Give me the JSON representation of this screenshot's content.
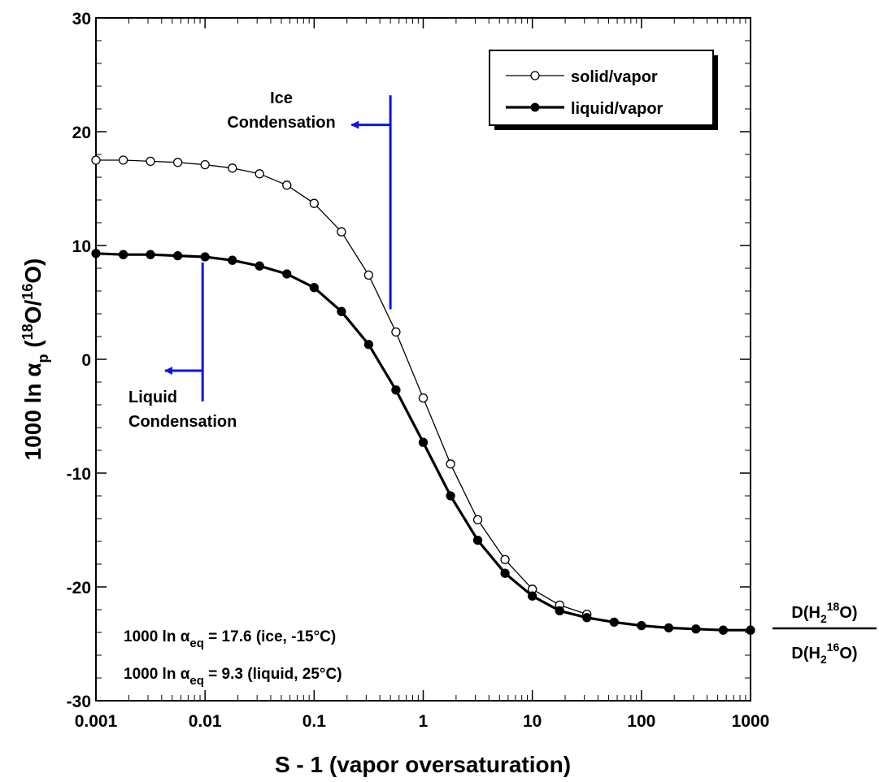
{
  "chart_data": {
    "type": "line",
    "xscale": "log",
    "xlim": [
      0.001,
      1000
    ],
    "ylim": [
      -30,
      30
    ],
    "xlabel": "S - 1 (vapor oversaturation)",
    "ylabel": {
      "prefix": "1000 ln α",
      "sub": "p",
      "mid": " (",
      "sup1": "18",
      "mid2": "O/",
      "sup2": "16",
      "suffix": "O)"
    },
    "x_ticks": [
      0.001,
      0.01,
      0.1,
      1,
      10,
      100,
      1000
    ],
    "x_tick_labels": [
      "0.001",
      "0.01",
      "0.1",
      "1",
      "10",
      "100",
      "1000"
    ],
    "y_ticks": [
      30,
      20,
      10,
      0,
      -10,
      -20,
      -30
    ],
    "y_tick_labels": [
      "30",
      "20",
      "10",
      "0",
      "-10",
      "-20",
      "-30"
    ],
    "legend": {
      "position": "top-right",
      "entries": [
        "solid/vapor",
        "liquid/vapor"
      ]
    },
    "series": [
      {
        "name": "solid/vapor",
        "marker": "open-circle",
        "x": [
          0.001,
          0.00178,
          0.00316,
          0.00562,
          0.01,
          0.0178,
          0.0316,
          0.0562,
          0.1,
          0.178,
          0.316,
          0.562,
          1,
          1.78,
          3.16,
          5.62,
          10,
          17.8,
          31.6
        ],
        "y": [
          17.5,
          17.5,
          17.4,
          17.3,
          17.1,
          16.8,
          16.3,
          15.3,
          13.7,
          11.2,
          7.4,
          2.4,
          -3.4,
          -9.2,
          -14.1,
          -17.6,
          -20.2,
          -21.6,
          -22.4
        ]
      },
      {
        "name": "liquid/vapor",
        "marker": "filled-circle",
        "x": [
          0.001,
          0.00178,
          0.00316,
          0.00562,
          0.01,
          0.0178,
          0.0316,
          0.0562,
          0.1,
          0.178,
          0.316,
          0.562,
          1,
          1.78,
          3.16,
          5.62,
          10,
          17.8,
          31.6,
          56.2,
          100,
          178,
          316,
          562,
          1000
        ],
        "y": [
          9.3,
          9.2,
          9.2,
          9.1,
          9.0,
          8.7,
          8.2,
          7.5,
          6.3,
          4.2,
          1.3,
          -2.7,
          -7.3,
          -12.0,
          -15.9,
          -18.8,
          -20.8,
          -22.1,
          -22.7,
          -23.1,
          -23.4,
          -23.6,
          -23.7,
          -23.8,
          -23.8
        ]
      }
    ],
    "annotations": {
      "ice": {
        "line1": "Ice",
        "line2": "Condensation",
        "x": 0.5,
        "y_top": 23.2,
        "y_bottom": 4.4,
        "arrow_y": 20.6,
        "arrow_to_x": 0.22
      },
      "liquid": {
        "line1": "Liquid",
        "line2": "Condensation",
        "x": 0.0095,
        "y_top": 8.5,
        "y_bottom": -3.7,
        "arrow_y": -1.0,
        "arrow_to_x": 0.0043
      },
      "eq_ice": {
        "prefix": "1000 ln α",
        "sub": "eq",
        "suffix": " = 17.6 (ice, -15°C)"
      },
      "eq_liquid": {
        "prefix": "1000 ln α",
        "sub": "eq",
        "suffix": " = 9.3 (liquid, 25°C)"
      },
      "diffusivity_ratio": {
        "num_a": "D(H",
        "num_sub": "2",
        "num_sup": "18",
        "num_b": "O)",
        "den_a": "D(H",
        "den_sub": "2",
        "den_sup": "16",
        "den_b": "O)"
      }
    },
    "colors": {
      "series": "#000000",
      "arrows": "#0a14e6"
    }
  }
}
